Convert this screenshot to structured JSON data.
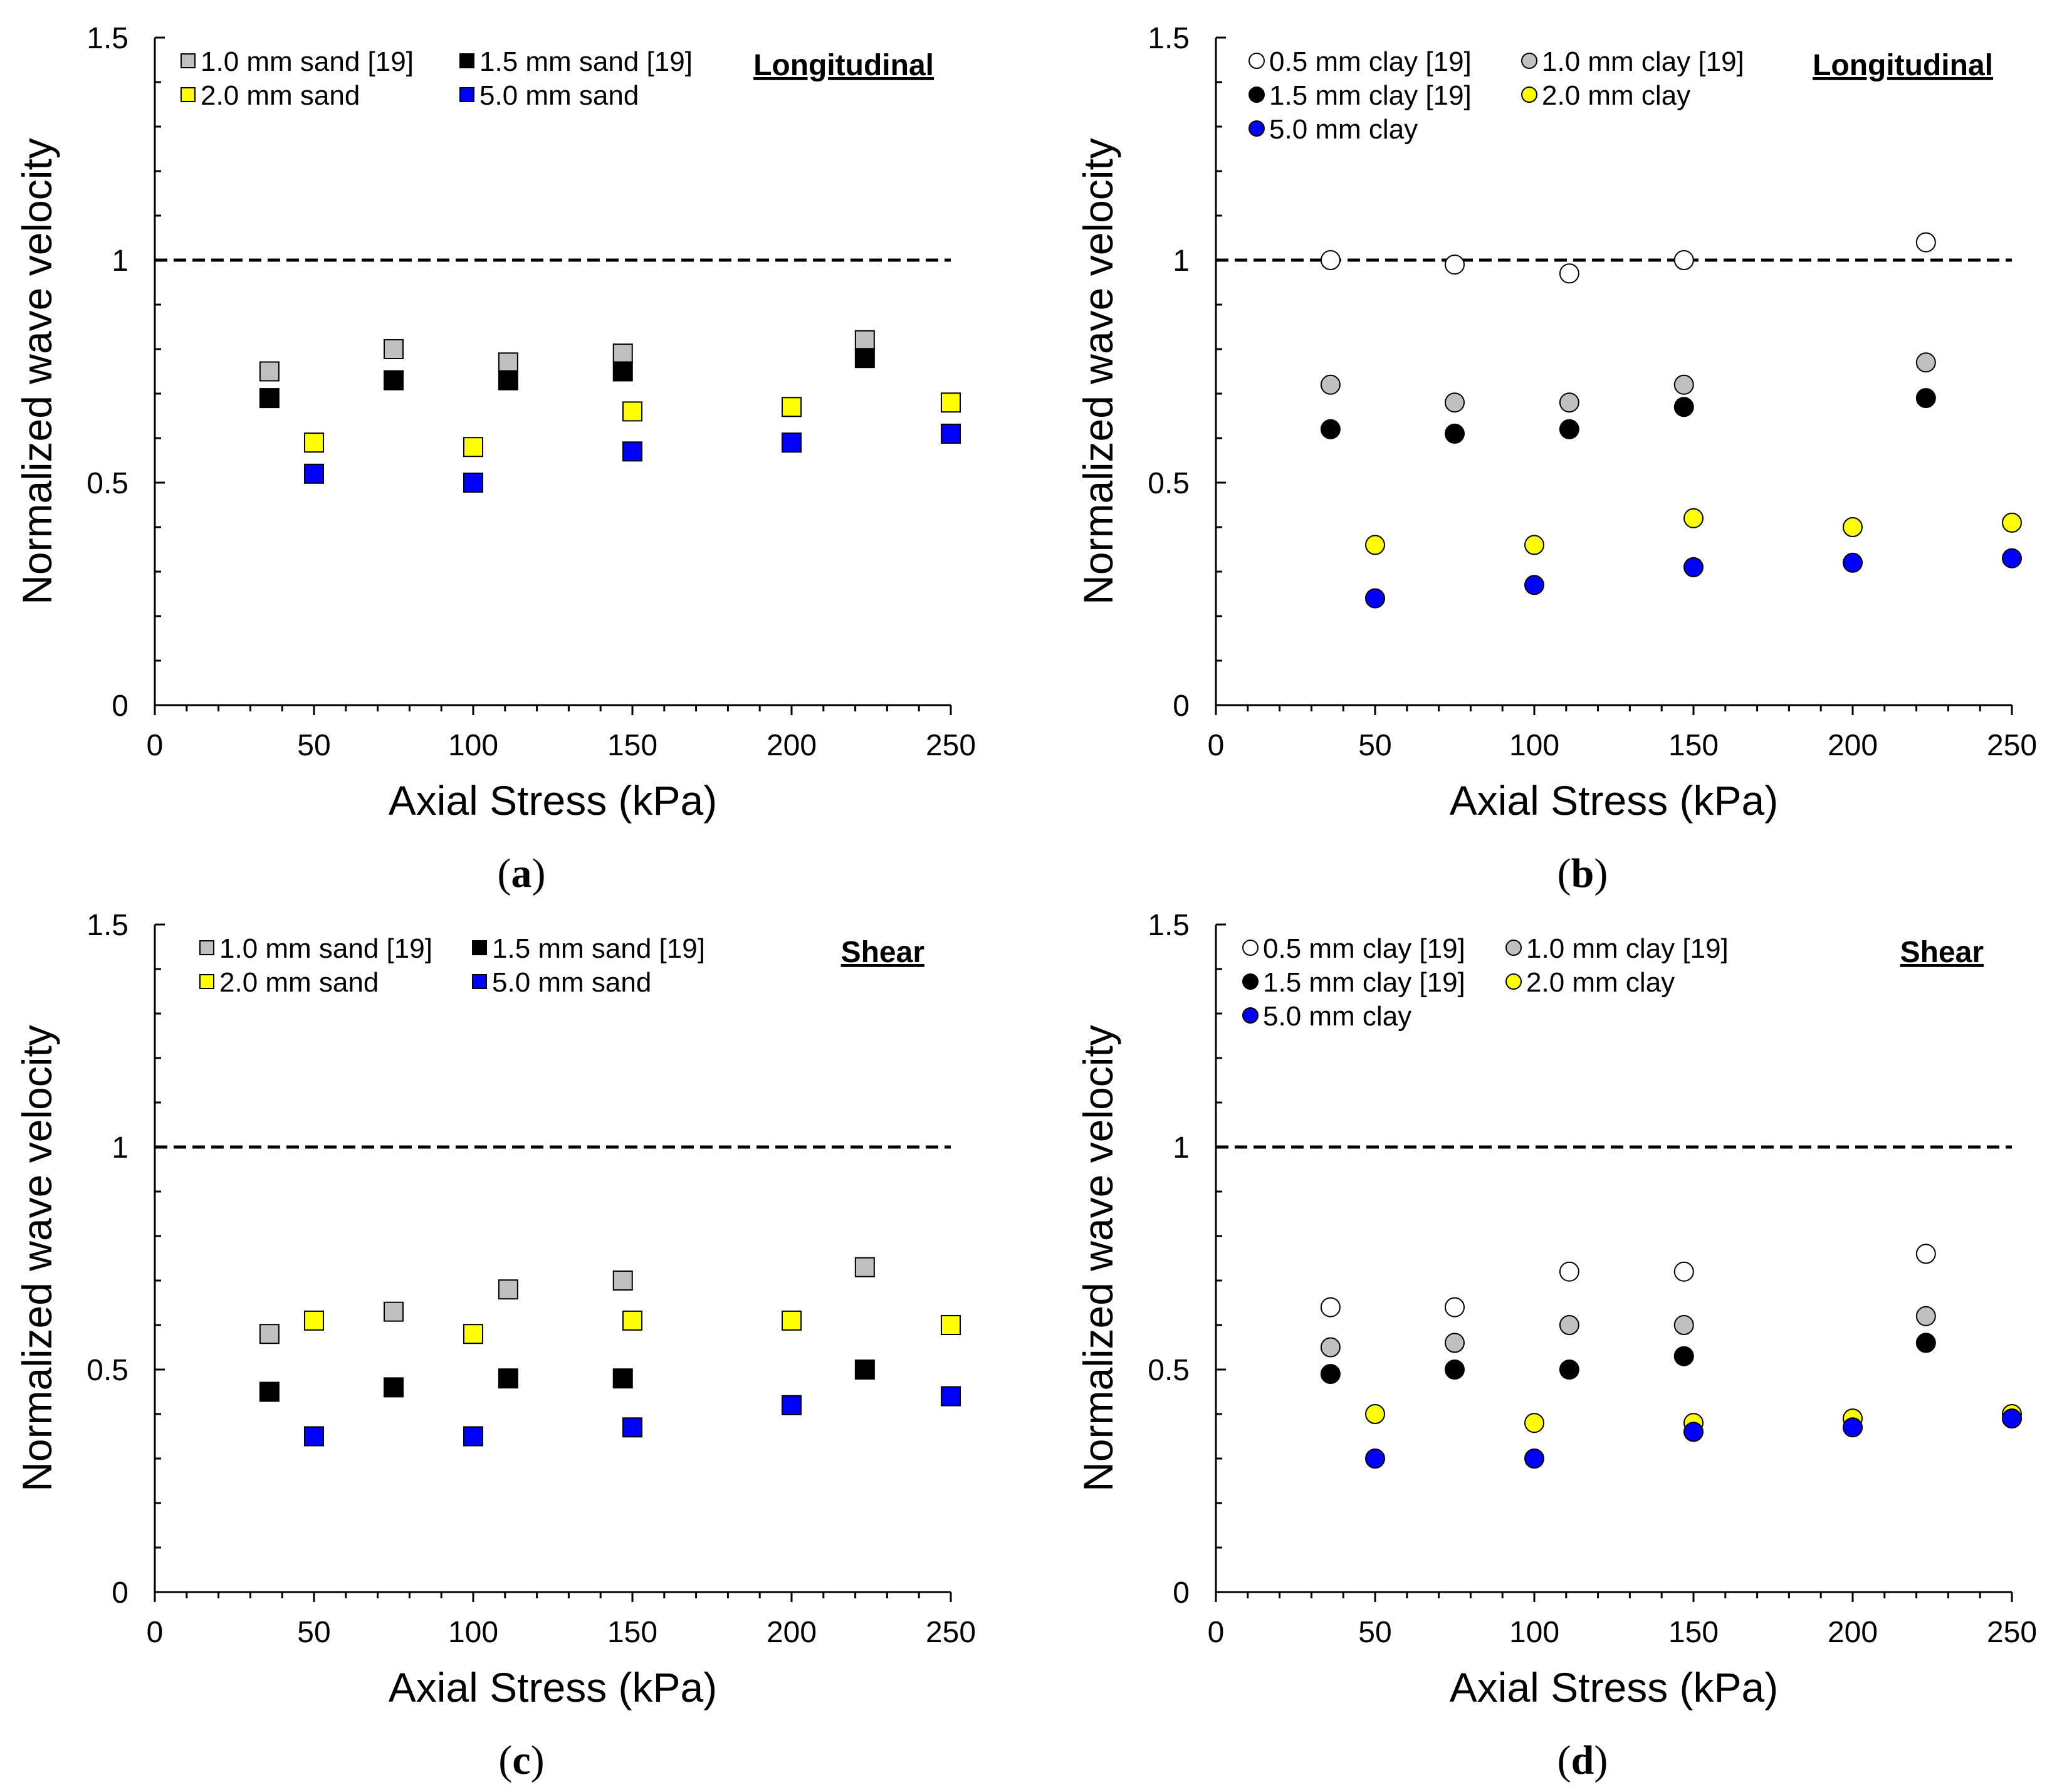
{
  "figure": {
    "domain": "Chart"
  },
  "colors": {
    "light_gray": "#c0c0c0",
    "black": "#000000",
    "yellow": "#ffff00",
    "blue": "#0000ff",
    "white": "#ffffff"
  },
  "chart_data": [
    {
      "id": "a",
      "caption_letter": "a",
      "type": "scatter",
      "marker": "square",
      "title": "Longitudinal",
      "xlabel": "Axial Stress (kPa)",
      "ylabel": "Normalized wave velocity",
      "xlim": [
        0,
        250
      ],
      "ylim": [
        0,
        1.5
      ],
      "xticks": [
        0,
        50,
        100,
        150,
        200,
        250
      ],
      "xtick_labels": [
        "0",
        "50",
        "100",
        "150",
        "200",
        "250"
      ],
      "yticks": [
        0,
        0.5,
        1,
        1.5
      ],
      "ytick_labels": [
        "0",
        "0.5",
        "1",
        "1.5"
      ],
      "reference_line": 1,
      "legend_position": "top",
      "series": [
        {
          "name": "1.0 mm sand [19]",
          "color": "#c0c0c0",
          "x": [
            36,
            75,
            111,
            147,
            223
          ],
          "y": [
            0.75,
            0.8,
            0.77,
            0.79,
            0.82
          ]
        },
        {
          "name": "1.5 mm sand [19]",
          "color": "#000000",
          "x": [
            36,
            75,
            111,
            147,
            223
          ],
          "y": [
            0.69,
            0.73,
            0.73,
            0.75,
            0.78
          ]
        },
        {
          "name": "2.0 mm sand",
          "color": "#ffff00",
          "x": [
            50,
            100,
            150,
            200,
            250
          ],
          "y": [
            0.59,
            0.58,
            0.66,
            0.67,
            0.68
          ]
        },
        {
          "name": "5.0 mm sand",
          "color": "#0000ff",
          "x": [
            50,
            100,
            150,
            200,
            250
          ],
          "y": [
            0.52,
            0.5,
            0.57,
            0.59,
            0.61
          ]
        }
      ]
    },
    {
      "id": "b",
      "caption_letter": "b",
      "type": "scatter",
      "marker": "circle",
      "title": "Longitudinal",
      "xlabel": "Axial Stress (kPa)",
      "ylabel": "Normalized wave velocity",
      "xlim": [
        0,
        250
      ],
      "ylim": [
        0,
        1.5
      ],
      "xticks": [
        0,
        50,
        100,
        150,
        200,
        250
      ],
      "xtick_labels": [
        "0",
        "50",
        "100",
        "150",
        "200",
        "250"
      ],
      "yticks": [
        0,
        0.5,
        1,
        1.5
      ],
      "ytick_labels": [
        "0",
        "0.5",
        "1",
        "1.5"
      ],
      "reference_line": 1,
      "legend_position": "top",
      "series": [
        {
          "name": "0.5 mm clay [19]",
          "color": "#ffffff",
          "x": [
            36,
            75,
            111,
            147,
            223
          ],
          "y": [
            1.0,
            0.99,
            0.97,
            1.0,
            1.04
          ]
        },
        {
          "name": "1.0 mm clay [19]",
          "color": "#c0c0c0",
          "x": [
            36,
            75,
            111,
            147,
            223
          ],
          "y": [
            0.72,
            0.68,
            0.68,
            0.72,
            0.77
          ]
        },
        {
          "name": "1.5 mm clay [19]",
          "color": "#000000",
          "x": [
            36,
            75,
            111,
            147,
            223
          ],
          "y": [
            0.62,
            0.61,
            0.62,
            0.67,
            0.69
          ]
        },
        {
          "name": "2.0 mm clay",
          "color": "#ffff00",
          "x": [
            50,
            100,
            150,
            200,
            250
          ],
          "y": [
            0.36,
            0.36,
            0.42,
            0.4,
            0.41
          ]
        },
        {
          "name": "5.0 mm clay",
          "color": "#0000ff",
          "x": [
            50,
            100,
            150,
            200,
            250
          ],
          "y": [
            0.24,
            0.27,
            0.31,
            0.32,
            0.33
          ]
        }
      ]
    },
    {
      "id": "c",
      "caption_letter": "c",
      "type": "scatter",
      "marker": "square",
      "title": "Shear",
      "xlabel": "Axial Stress (kPa)",
      "ylabel": "Normalized wave velocity",
      "xlim": [
        0,
        250
      ],
      "ylim": [
        0,
        1.5
      ],
      "xticks": [
        0,
        50,
        100,
        150,
        200,
        250
      ],
      "xtick_labels": [
        "0",
        "50",
        "100",
        "150",
        "200",
        "250"
      ],
      "yticks": [
        0,
        0.5,
        1,
        1.5
      ],
      "ytick_labels": [
        "0",
        "0.5",
        "1",
        "1.5"
      ],
      "reference_line": 1,
      "legend_position": "top",
      "series": [
        {
          "name": "1.0 mm sand [19]",
          "color": "#c0c0c0",
          "x": [
            36,
            75,
            111,
            147,
            223
          ],
          "y": [
            0.58,
            0.63,
            0.68,
            0.7,
            0.73
          ]
        },
        {
          "name": "1.5 mm sand [19]",
          "color": "#000000",
          "x": [
            36,
            75,
            111,
            147,
            223
          ],
          "y": [
            0.45,
            0.46,
            0.48,
            0.48,
            0.5
          ]
        },
        {
          "name": "2.0 mm sand",
          "color": "#ffff00",
          "x": [
            50,
            100,
            150,
            200,
            250
          ],
          "y": [
            0.61,
            0.58,
            0.61,
            0.61,
            0.6
          ]
        },
        {
          "name": "5.0 mm sand",
          "color": "#0000ff",
          "x": [
            50,
            100,
            150,
            200,
            250
          ],
          "y": [
            0.35,
            0.35,
            0.37,
            0.42,
            0.44
          ]
        }
      ]
    },
    {
      "id": "d",
      "caption_letter": "d",
      "type": "scatter",
      "marker": "circle",
      "title": "Shear",
      "xlabel": "Axial Stress (kPa)",
      "ylabel": "Normalized wave velocity",
      "xlim": [
        0,
        250
      ],
      "ylim": [
        0,
        1.5
      ],
      "xticks": [
        0,
        50,
        100,
        150,
        200,
        250
      ],
      "xtick_labels": [
        "0",
        "50",
        "100",
        "150",
        "200",
        "250"
      ],
      "yticks": [
        0,
        0.5,
        1,
        1.5
      ],
      "ytick_labels": [
        "0",
        "0.5",
        "1",
        "1.5"
      ],
      "reference_line": 1,
      "legend_position": "top",
      "series": [
        {
          "name": "0.5 mm clay [19]",
          "color": "#ffffff",
          "x": [
            36,
            75,
            111,
            147,
            223
          ],
          "y": [
            0.64,
            0.64,
            0.72,
            0.72,
            0.76
          ]
        },
        {
          "name": "1.0 mm clay [19]",
          "color": "#c0c0c0",
          "x": [
            36,
            75,
            111,
            147,
            223
          ],
          "y": [
            0.55,
            0.56,
            0.6,
            0.6,
            0.62
          ]
        },
        {
          "name": "1.5 mm clay [19]",
          "color": "#000000",
          "x": [
            36,
            75,
            111,
            147,
            223
          ],
          "y": [
            0.49,
            0.5,
            0.5,
            0.53,
            0.56
          ]
        },
        {
          "name": "2.0 mm clay",
          "color": "#ffff00",
          "x": [
            50,
            100,
            150,
            200,
            250
          ],
          "y": [
            0.4,
            0.38,
            0.38,
            0.39,
            0.4
          ]
        },
        {
          "name": "5.0 mm clay",
          "color": "#0000ff",
          "x": [
            50,
            100,
            150,
            200,
            250
          ],
          "y": [
            0.3,
            0.3,
            0.36,
            0.37,
            0.39
          ]
        }
      ]
    }
  ]
}
